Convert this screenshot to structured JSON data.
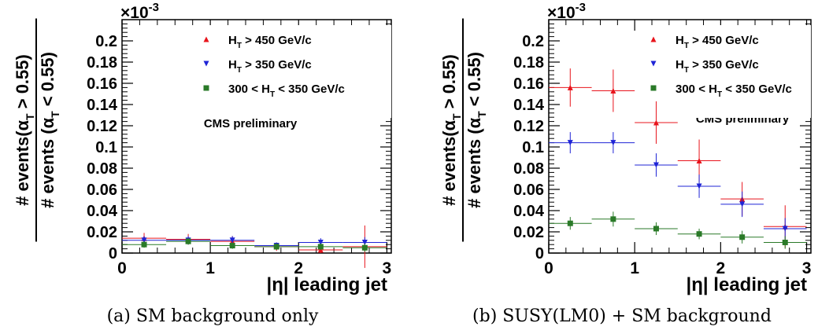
{
  "captions": [
    "(a) SM background only",
    "(b) SUSY(LM0) + SM background"
  ],
  "colors": {
    "ht450": "#e8141c",
    "ht350": "#1f24d6",
    "ht300": "#2a7a28"
  },
  "chart_data": [
    {
      "type": "scatter",
      "id": "a",
      "exponent_label": "×10",
      "exponent": "-3",
      "ylabel_numerator": "# events(α_T > 0.55)",
      "ylabel_denominator": "# events (α_T < 0.55)",
      "xlabel": "|η| leading jet",
      "annotation": "CMS preliminary",
      "xlim": [
        0,
        3.05
      ],
      "ylim": [
        0,
        0.22
      ],
      "xticks": [
        0,
        1,
        2,
        3
      ],
      "yticks": [
        0.02,
        0.04,
        0.06,
        0.08,
        0.1,
        0.12,
        0.14,
        0.16,
        0.18,
        0.2
      ],
      "ytick_labels": [
        "0",
        "0.02",
        "0.04",
        "0.06",
        "0.08",
        "0.1",
        "0.12",
        "0.14",
        "0.16",
        "0.18",
        "0.2"
      ],
      "legend": [
        "H_T > 450 GeV/c",
        "H_T > 350 GeV/c",
        "300 < H_T < 350 GeV/c"
      ],
      "series": [
        {
          "name": "H_T > 450 GeV/c",
          "color": "#e8141c",
          "marker": "triangle-up",
          "x": [
            0.25,
            0.75,
            1.25,
            1.75,
            2.25,
            2.75
          ],
          "y": [
            0.014,
            0.013,
            0.011,
            0.006,
            0.003,
            0.006
          ],
          "yerr": [
            0.005,
            0.005,
            0.005,
            0.004,
            0.003,
            0.02
          ]
        },
        {
          "name": "H_T > 350 GeV/c",
          "color": "#1f24d6",
          "marker": "triangle-down",
          "x": [
            0.25,
            0.75,
            1.25,
            1.75,
            2.25,
            2.75
          ],
          "y": [
            0.012,
            0.012,
            0.012,
            0.007,
            0.01,
            0.01
          ],
          "yerr": [
            0.004,
            0.004,
            0.004,
            0.003,
            0.004,
            0.005
          ]
        },
        {
          "name": "300 < H_T < 350 GeV/c",
          "color": "#2a7a28",
          "marker": "square",
          "x": [
            0.25,
            0.75,
            1.25,
            1.75,
            2.25,
            2.75
          ],
          "y": [
            0.008,
            0.011,
            0.007,
            0.006,
            0.006,
            0.005
          ],
          "yerr": [
            0.003,
            0.003,
            0.003,
            0.003,
            0.003,
            0.004
          ]
        }
      ]
    },
    {
      "type": "scatter",
      "id": "b",
      "exponent_label": "×10",
      "exponent": "-3",
      "ylabel_numerator": "# events(α_T > 0.55)",
      "ylabel_denominator": "# events (α_T < 0.55)",
      "xlabel": "|η| leading jet",
      "annotation": "CMS preliminary",
      "xlim": [
        0,
        3.05
      ],
      "ylim": [
        0,
        0.22
      ],
      "xticks": [
        0,
        1,
        2,
        3
      ],
      "yticks": [
        0.02,
        0.04,
        0.06,
        0.08,
        0.1,
        0.12,
        0.14,
        0.16,
        0.18,
        0.2
      ],
      "ytick_labels": [
        "0",
        "0.02",
        "0.04",
        "0.06",
        "0.08",
        "0.1",
        "0.12",
        "0.14",
        "0.16",
        "0.18",
        "0.2"
      ],
      "legend": [
        "H_T > 450 GeV/c",
        "H_T > 350 GeV/c",
        "300 < H_T < 350 GeV/c"
      ],
      "series": [
        {
          "name": "H_T > 450 GeV/c",
          "color": "#e8141c",
          "marker": "triangle-up",
          "x": [
            0.25,
            0.75,
            1.25,
            1.75,
            2.25,
            2.75
          ],
          "y": [
            0.156,
            0.153,
            0.123,
            0.087,
            0.051,
            0.025
          ],
          "yerr": [
            0.018,
            0.02,
            0.02,
            0.02,
            0.016,
            0.02
          ]
        },
        {
          "name": "H_T > 350 GeV/c",
          "color": "#1f24d6",
          "marker": "triangle-down",
          "x": [
            0.25,
            0.75,
            1.25,
            1.75,
            2.25,
            2.75
          ],
          "y": [
            0.104,
            0.104,
            0.083,
            0.063,
            0.046,
            0.023
          ],
          "yerr": [
            0.01,
            0.01,
            0.011,
            0.011,
            0.012,
            0.01
          ]
        },
        {
          "name": "300 < H_T < 350 GeV/c",
          "color": "#2a7a28",
          "marker": "square",
          "x": [
            0.25,
            0.75,
            1.25,
            1.75,
            2.25,
            2.75
          ],
          "y": [
            0.028,
            0.032,
            0.023,
            0.018,
            0.015,
            0.01
          ],
          "yerr": [
            0.006,
            0.007,
            0.006,
            0.005,
            0.006,
            0.006
          ]
        }
      ]
    }
  ]
}
